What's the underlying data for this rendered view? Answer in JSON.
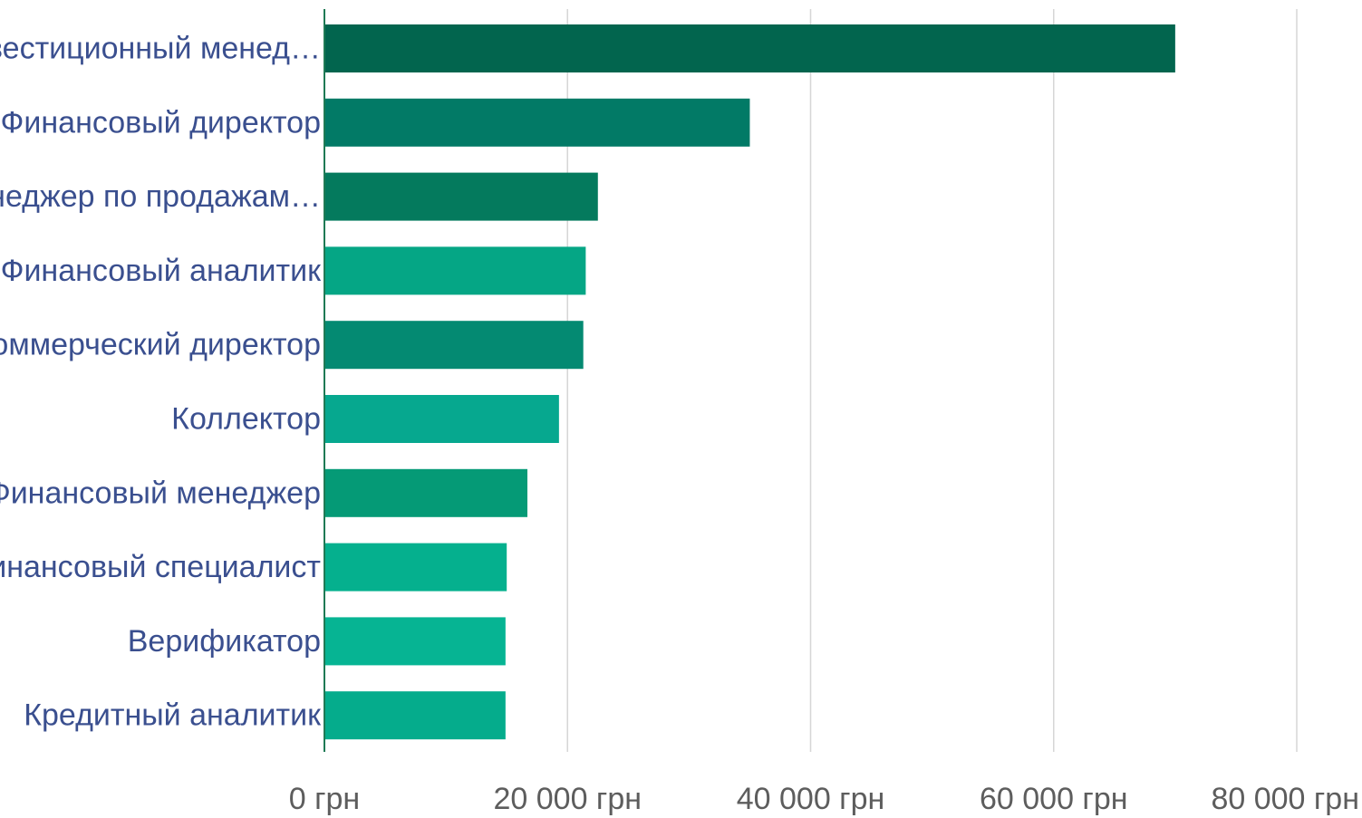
{
  "chart_data": {
    "type": "bar",
    "orientation": "horizontal",
    "title": "",
    "xlabel": "",
    "ylabel": "",
    "categories": [
      "Инвестиционный менед…",
      "Финансовый директор",
      "Менеджер по продажам…",
      "Финансовый аналитик",
      "Коммерческий директор",
      "Коллектор",
      "Финансовый менеджер",
      "Финансовый специалист",
      "Верификатор",
      "Кредитный аналитик"
    ],
    "values": [
      70000,
      35000,
      22500,
      21500,
      21300,
      19300,
      16700,
      15000,
      14900,
      14900
    ],
    "bar_colors": [
      "#02654e",
      "#027a66",
      "#047a5d",
      "#05a685",
      "#048a72",
      "#06a88f",
      "#059a76",
      "#05b08e",
      "#06b493",
      "#05ac8c"
    ],
    "xlim": [
      0,
      80000
    ],
    "x_ticks": [
      0,
      20000,
      40000,
      60000,
      80000
    ],
    "x_tick_labels": [
      "0 грн",
      "20 000 грн",
      "40 000 грн",
      "60 000 грн",
      "80 000 грн"
    ],
    "grid": true,
    "legend": "none"
  }
}
